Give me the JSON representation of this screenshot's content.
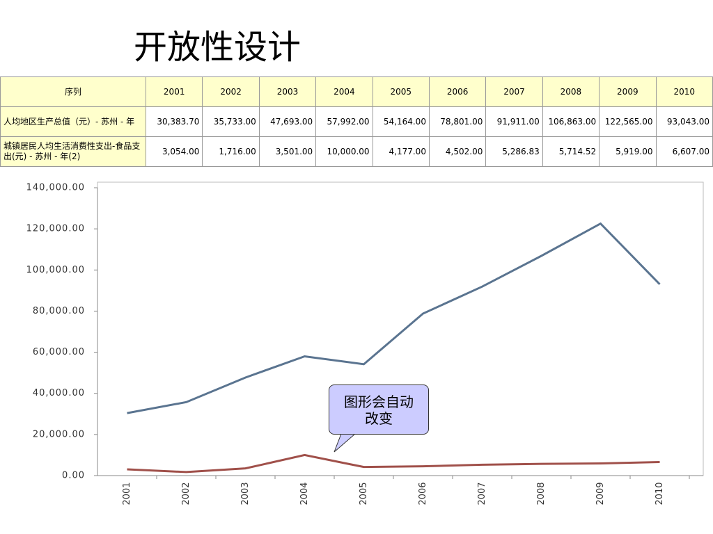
{
  "title": "开放性设计",
  "table": {
    "header": [
      "序列",
      "2001",
      "2002",
      "2003",
      "2004",
      "2005",
      "2006",
      "2007",
      "2008",
      "2009",
      "2010"
    ],
    "rows": [
      [
        "人均地区生产总值（元）- 苏州 - 年",
        "30,383.70",
        "35,733.00",
        "47,693.00",
        "57,992.00",
        "54,164.00",
        "78,801.00",
        "91,911.00",
        "106,863.00",
        "122,565.00",
        "93,043.00"
      ],
      [
        "城镇居民人均生活消费性支出-食品支出(元) - 苏州 - 年(2)",
        "3,054.00",
        "1,716.00",
        "3,501.00",
        "10,000.00",
        "4,177.00",
        "4,502.00",
        "5,286.83",
        "5,714.52",
        "5,919.00",
        "6,607.00"
      ]
    ]
  },
  "chart_data": {
    "type": "line",
    "categories": [
      "2001",
      "2002",
      "2003",
      "2004",
      "2005",
      "2006",
      "2007",
      "2008",
      "2009",
      "2010"
    ],
    "series": [
      {
        "color": "#5a7490",
        "values": [
          30383.7,
          35733,
          47693,
          57992,
          54164,
          78801,
          91911,
          106863,
          122565,
          93043
        ]
      },
      {
        "color": "#a0504a",
        "values": [
          3054,
          1716,
          3501,
          10000,
          4177,
          4502,
          5286.83,
          5714.52,
          5919,
          6607
        ]
      }
    ],
    "ylim": [
      0,
      140000
    ],
    "yticks": [
      {
        "value": 0,
        "label": "0.00"
      },
      {
        "value": 20000,
        "label": "20,000.00"
      },
      {
        "value": 40000,
        "label": "40,000.00"
      },
      {
        "value": 60000,
        "label": "60,000.00"
      },
      {
        "value": 80000,
        "label": "80,000.00"
      },
      {
        "value": 100000,
        "label": "100,000.00"
      },
      {
        "value": 120000,
        "label": "120,000.00"
      },
      {
        "value": 140000,
        "label": "140,000.00"
      }
    ],
    "grid": false
  },
  "callout": "图形会自动改变"
}
